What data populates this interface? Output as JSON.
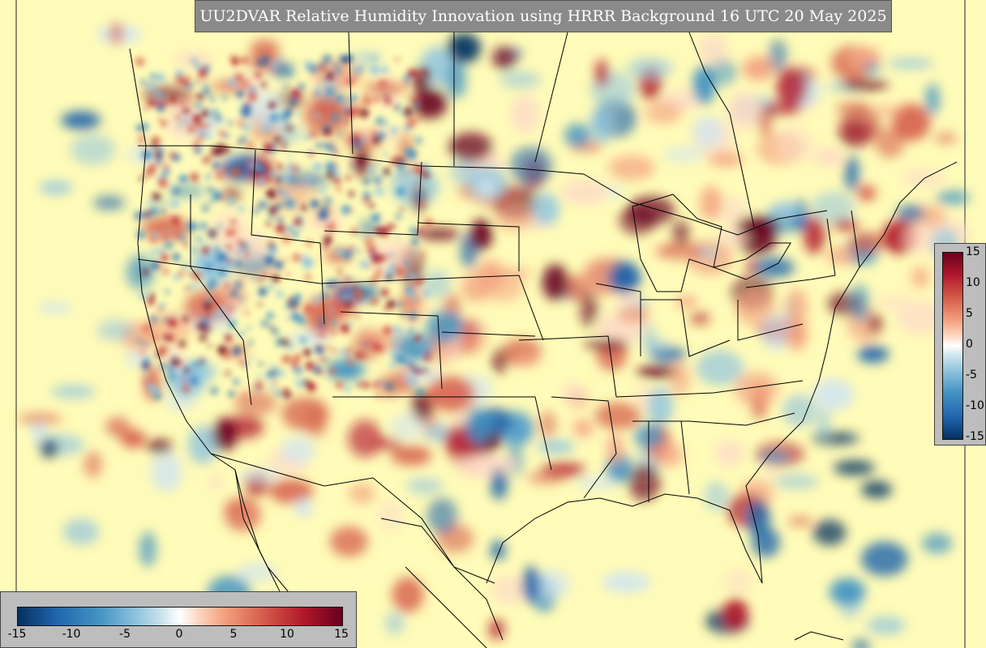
{
  "title": "UU2DVAR Relative Humidity Innovation using HRRR Background 16 UTC 20 May 2025",
  "map": {
    "background_color": "#fffbb8",
    "boundary_color": "#000000",
    "palette": [
      "#053061",
      "#2166ac",
      "#4393c3",
      "#92c5de",
      "#d1e5f0",
      "#ffffff",
      "#fddbc7",
      "#f4a582",
      "#d6604d",
      "#b2182b",
      "#67001f"
    ]
  },
  "colorbar_vertical": {
    "ticks": [
      "15",
      "10",
      "5",
      "0",
      "-5",
      "-10",
      "-15"
    ]
  },
  "colorbar_horizontal": {
    "ticks": [
      "-15",
      "-10",
      "-5",
      "0",
      "5",
      "10",
      "15"
    ]
  }
}
